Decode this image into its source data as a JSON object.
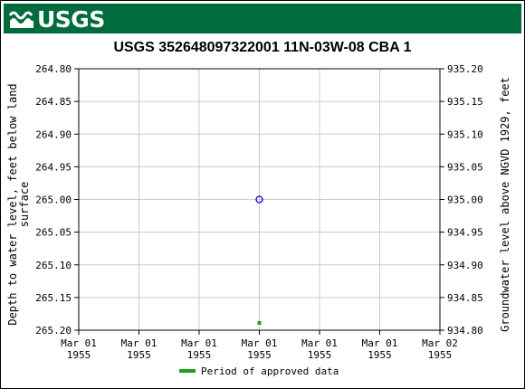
{
  "header": {
    "logo_text": "USGS"
  },
  "chart_data": {
    "type": "scatter",
    "title": "USGS 352648097322001 11N-03W-08 CBA 1",
    "ylabel_left": "Depth to water level, feet below land surface",
    "ylabel_left_lines": [
      "Depth to water level, feet below land",
      "surface"
    ],
    "ylabel_right": "Groundwater level above NGVD 1929, feet",
    "y_left_ticks": [
      "264.80",
      "264.85",
      "264.90",
      "264.95",
      "265.00",
      "265.05",
      "265.10",
      "265.15",
      "265.20"
    ],
    "y_right_ticks": [
      "935.20",
      "935.15",
      "935.10",
      "935.05",
      "935.00",
      "934.95",
      "934.90",
      "934.85",
      "934.80"
    ],
    "ylim_left": [
      264.8,
      265.2
    ],
    "x_ticks": [
      {
        "line1": "Mar 01",
        "line2": "1955"
      },
      {
        "line1": "Mar 01",
        "line2": "1955"
      },
      {
        "line1": "Mar 01",
        "line2": "1955"
      },
      {
        "line1": "Mar 01",
        "line2": "1955"
      },
      {
        "line1": "Mar 01",
        "line2": "1955"
      },
      {
        "line1": "Mar 01",
        "line2": "1955"
      },
      {
        "line1": "Mar 02",
        "line2": "1955"
      }
    ],
    "points": [
      {
        "x": "1955-03-01",
        "y": 265.0
      }
    ],
    "approved_periods": [
      {
        "x": "1955-03-01"
      }
    ],
    "grid": true,
    "legend_position": "bottom-center",
    "colors": {
      "point": "#0000cc",
      "approved": "#1e9e1e",
      "grid": "#cccccc"
    }
  },
  "legend": {
    "label": "Period of approved data"
  }
}
